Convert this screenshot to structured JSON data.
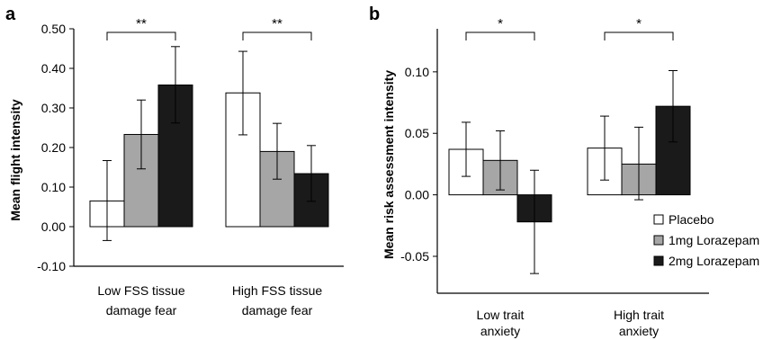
{
  "chart_data": [
    {
      "type": "bar",
      "panel": "a",
      "ylabel": "Mean flight intensity",
      "ylim": [
        -0.1,
        0.5
      ],
      "yticks": [
        "-0.10",
        "0.00",
        "0.10",
        "0.20",
        "0.30",
        "0.40",
        "0.50"
      ],
      "categories": [
        [
          "Low FSS tissue",
          "damage fear"
        ],
        [
          "High FSS tissue",
          "damage fear"
        ]
      ],
      "series": [
        {
          "name": "Placebo",
          "color": "#ffffff",
          "values": [
            0.065,
            0.338
          ],
          "err_low": [
            -0.035,
            0.232
          ],
          "err_high": [
            0.167,
            0.443
          ]
        },
        {
          "name": "1mg Lorazepam",
          "color": "#a6a6a6",
          "values": [
            0.233,
            0.19
          ],
          "err_low": [
            0.146,
            0.12
          ],
          "err_high": [
            0.32,
            0.261
          ]
        },
        {
          "name": "2mg Lorazepam",
          "color": "#1a1a1a",
          "values": [
            0.358,
            0.134
          ],
          "err_low": [
            0.262,
            0.064
          ],
          "err_high": [
            0.455,
            0.205
          ]
        }
      ],
      "significance": [
        {
          "category_index": 0,
          "label": "**"
        },
        {
          "category_index": 1,
          "label": "**"
        }
      ]
    },
    {
      "type": "bar",
      "panel": "b",
      "ylabel": "Mean risk assessment intensity",
      "ylim": [
        -0.08,
        0.135
      ],
      "yticks": [
        "-0.05",
        "0.00",
        "0.05",
        "0.10"
      ],
      "categories": [
        [
          "Low trait",
          "anxiety"
        ],
        [
          "High trait",
          "anxiety"
        ]
      ],
      "series": [
        {
          "name": "Placebo",
          "color": "#ffffff",
          "values": [
            0.037,
            0.038
          ],
          "err_low": [
            0.015,
            0.012
          ],
          "err_high": [
            0.059,
            0.064
          ]
        },
        {
          "name": "1mg Lorazepam",
          "color": "#a6a6a6",
          "values": [
            0.028,
            0.025
          ],
          "err_low": [
            0.004,
            -0.004
          ],
          "err_high": [
            0.052,
            0.055
          ]
        },
        {
          "name": "2mg Lorazepam",
          "color": "#1a1a1a",
          "values": [
            -0.022,
            0.072
          ],
          "err_low": [
            -0.064,
            0.043
          ],
          "err_high": [
            0.02,
            0.101
          ]
        }
      ],
      "significance": [
        {
          "category_index": 0,
          "label": "*"
        },
        {
          "category_index": 1,
          "label": "*"
        }
      ],
      "legend": {
        "position": "bottom-right",
        "items": [
          "Placebo",
          "1mg Lorazepam",
          "2mg Lorazepam"
        ]
      }
    }
  ]
}
